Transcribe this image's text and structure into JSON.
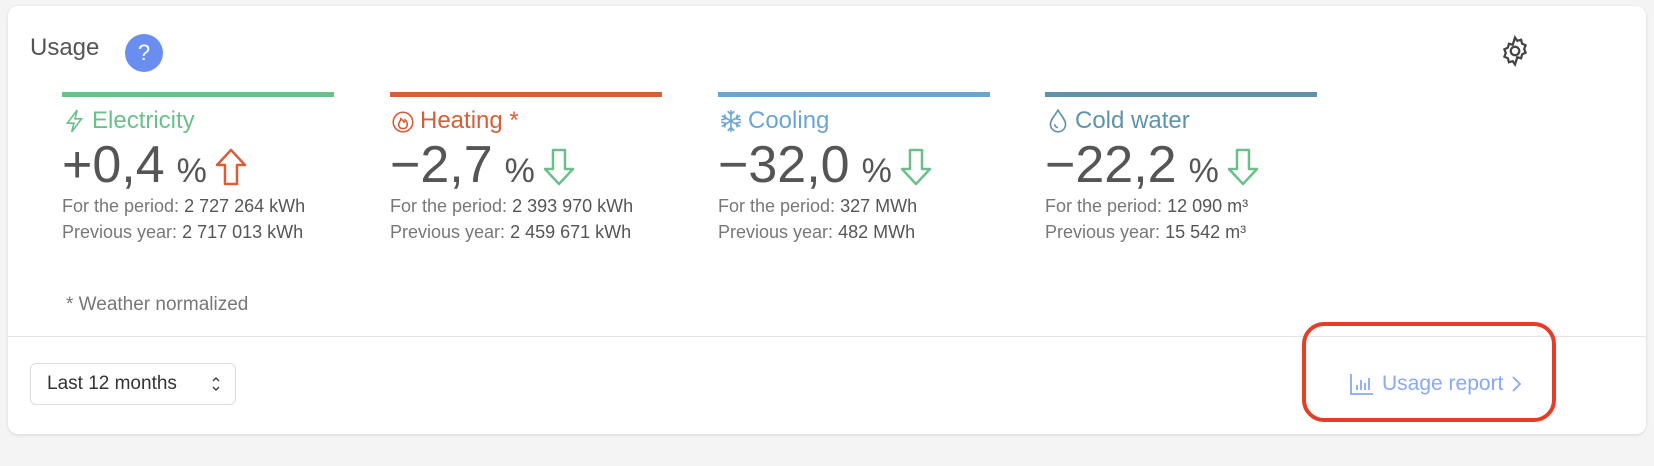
{
  "header": {
    "title": "Usage",
    "help_icon": "question-icon",
    "settings_icon": "gear-icon"
  },
  "colors": {
    "electricity": "#6bbf8b",
    "heating": "#d45f39",
    "cooling": "#6aa6d1",
    "cold_water": "#5f93ab",
    "down": "#6bbf8b",
    "up": "#d45f39",
    "link": "#8aa8f4",
    "highlight": "#e63e26"
  },
  "metrics": [
    {
      "name": "Electricity",
      "icon": "lightning-icon",
      "value": "+0,4",
      "unit": "%",
      "trend": "up",
      "period_label": "For the period:",
      "period_value": "2 727 264 kWh",
      "prev_label": "Previous year:",
      "prev_value": "2 717 013 kWh"
    },
    {
      "name": "Heating *",
      "icon": "flame-icon",
      "value": "−2,7",
      "unit": "%",
      "trend": "down",
      "period_label": "For the period:",
      "period_value": "2 393 970 kWh",
      "prev_label": "Previous year:",
      "prev_value": "2 459 671 kWh"
    },
    {
      "name": "Cooling",
      "icon": "snowflake-icon",
      "value": "−32,0",
      "unit": "%",
      "trend": "down",
      "period_label": "For the period:",
      "period_value": "327 MWh",
      "prev_label": "Previous year:",
      "prev_value": "482 MWh"
    },
    {
      "name": "Cold water",
      "icon": "droplet-icon",
      "value": "−22,2",
      "unit": "%",
      "trend": "down",
      "period_label": "For the period:",
      "period_value": "12 090 m³",
      "prev_label": "Previous year:",
      "prev_value": "15 542 m³"
    }
  ],
  "note": "* Weather normalized",
  "footer": {
    "period_select": "Last 12 months",
    "report_link": "Usage report"
  }
}
